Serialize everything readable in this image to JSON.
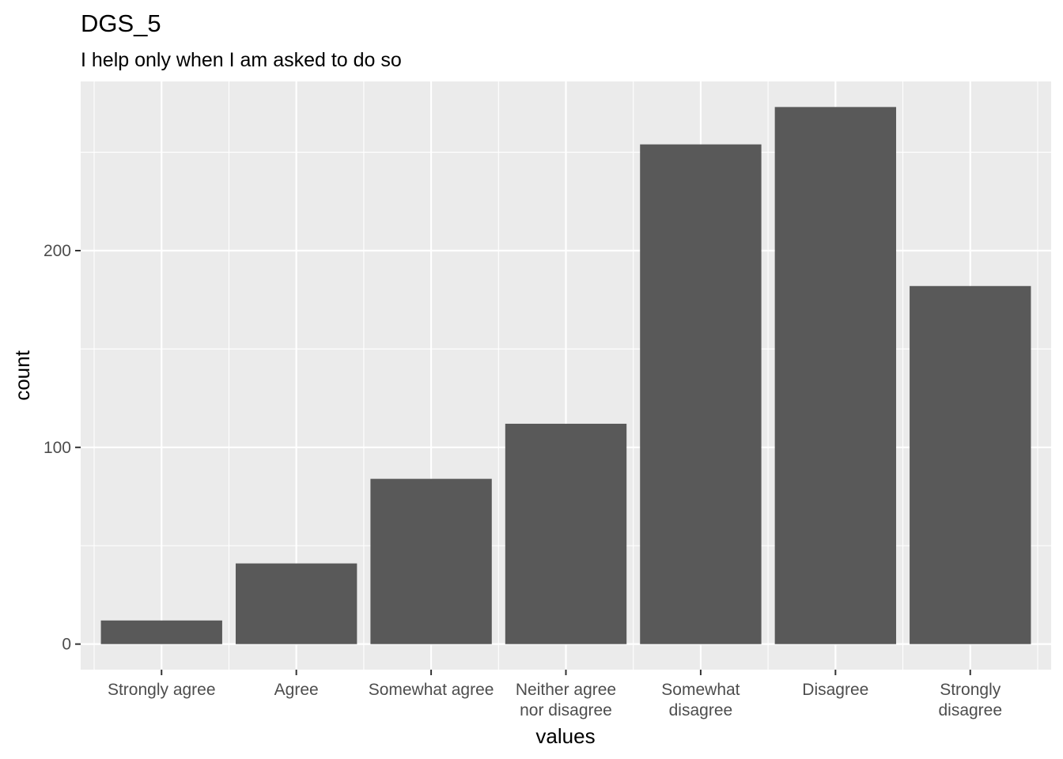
{
  "chart_data": {
    "type": "bar",
    "title": "DGS_5",
    "subtitle": "I help only when I am asked to do so",
    "xlabel": "values",
    "ylabel": "count",
    "categories": [
      [
        "Strongly agree"
      ],
      [
        "Agree"
      ],
      [
        "Somewhat agree"
      ],
      [
        "Neither agree",
        "nor disagree"
      ],
      [
        "Somewhat",
        "disagree"
      ],
      [
        "Disagree"
      ],
      [
        "Strongly",
        "disagree"
      ]
    ],
    "values": [
      12,
      41,
      84,
      112,
      254,
      273,
      182
    ],
    "ylim": [
      -13,
      286
    ],
    "yticks": [
      0,
      100,
      200
    ],
    "ytick_labels": [
      "0",
      "100",
      "200"
    ],
    "grid": true,
    "colors": {
      "panel": "#ebebeb",
      "grid": "#ffffff",
      "bar": "#595959",
      "tick": "#333333"
    }
  }
}
